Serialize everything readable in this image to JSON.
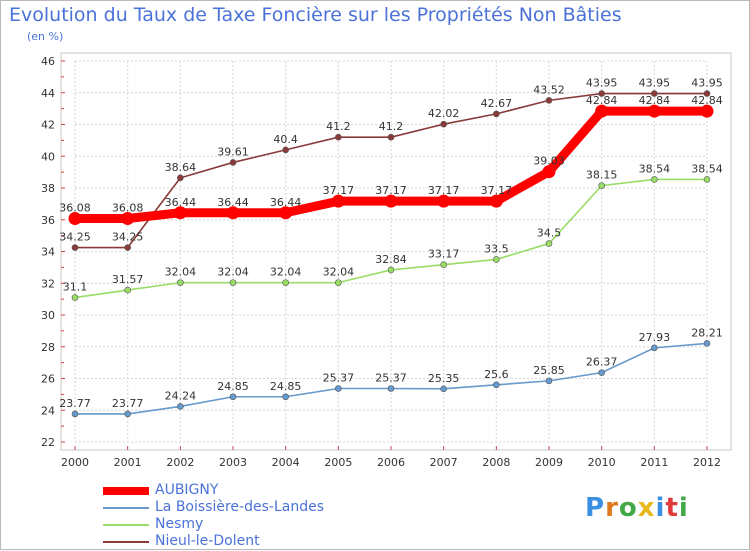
{
  "title": "Evolution du Taux de Taxe Foncière sur les Propriétés Non Bâties",
  "unit_label": "(en %)",
  "logo": {
    "text": "Proxiti",
    "letter_colors": [
      "#3a8fe0",
      "#e07a1f",
      "#43a847",
      "#e8b81c",
      "#3a8fe0",
      "#e03a3a",
      "#43a847"
    ]
  },
  "chart_data": {
    "type": "line",
    "title": "Evolution du Taux de Taxe Foncière sur les Propriétés Non Bâties",
    "ylabel": "(en %)",
    "xlabel": "",
    "x": [
      "2000",
      "2001",
      "2002",
      "2003",
      "2004",
      "2005",
      "2006",
      "2007",
      "2008",
      "2009",
      "2010",
      "2011",
      "2012"
    ],
    "ylim": [
      22,
      46
    ],
    "yticks": [
      "22",
      "24",
      "26",
      "28",
      "30",
      "32",
      "34",
      "36",
      "38",
      "40",
      "42",
      "44",
      "46"
    ],
    "grid": true,
    "legend_position": "bottom-left",
    "series": [
      {
        "name": "AUBIGNY",
        "color": "#ff0000",
        "values": [
          36.08,
          36.08,
          36.44,
          36.44,
          36.44,
          37.17,
          37.17,
          37.17,
          37.17,
          39.03,
          42.84,
          42.84,
          42.84
        ],
        "labels": [
          "36.08",
          "36.08",
          "36.44",
          "36.44",
          "36.44",
          "37.17",
          "37.17",
          "37.17",
          "37.17",
          "39.03",
          "42.84",
          "42.84",
          "42.84"
        ]
      },
      {
        "name": "La Boissière-des-Landes",
        "color": "#6699cc",
        "values": [
          23.77,
          23.77,
          24.24,
          24.85,
          24.85,
          25.37,
          25.37,
          25.35,
          25.6,
          25.85,
          26.37,
          27.93,
          28.21
        ],
        "labels": [
          "23.77",
          "23.77",
          "24.24",
          "24.85",
          "24.85",
          "25.37",
          "25.37",
          "25.35",
          "25.6",
          "25.85",
          "26.37",
          "27.93",
          "28.21"
        ]
      },
      {
        "name": "Nesmy",
        "color": "#99dd66",
        "values": [
          31.1,
          31.57,
          32.04,
          32.04,
          32.04,
          32.04,
          32.84,
          33.17,
          33.5,
          34.5,
          38.15,
          38.54,
          38.54
        ],
        "labels": [
          "31.1",
          "31.57",
          "32.04",
          "32.04",
          "32.04",
          "32.04",
          "32.84",
          "33.17",
          "33.5",
          "34.5",
          "38.15",
          "38.54",
          "38.54"
        ]
      },
      {
        "name": "Nieul-le-Dolent",
        "color": "#8b3a3a",
        "values": [
          34.25,
          34.25,
          38.64,
          39.61,
          40.4,
          41.2,
          41.2,
          42.02,
          42.67,
          43.52,
          43.95,
          43.95,
          43.95
        ],
        "labels": [
          "34.25",
          "34.25",
          "38.64",
          "39.61",
          "40.4",
          "41.2",
          "41.2",
          "42.02",
          "42.67",
          "43.52",
          "43.95",
          "43.95",
          "43.95"
        ]
      }
    ]
  }
}
